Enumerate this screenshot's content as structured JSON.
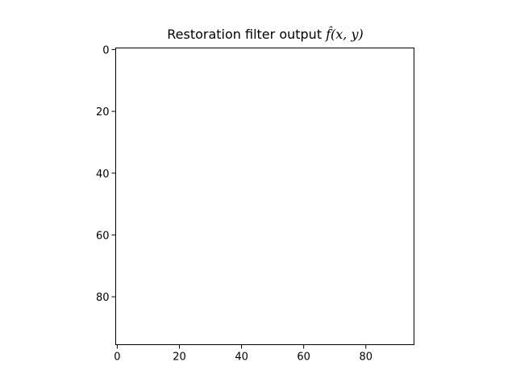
{
  "chart_data": {
    "type": "heatmap",
    "title": "Restoration filter output",
    "title_math": "f̂(x, y)",
    "xlabel": "",
    "ylabel": "",
    "xlim": [
      -0.5,
      95.5
    ],
    "ylim": [
      95.5,
      -0.5
    ],
    "y_inverted": true,
    "grid": false,
    "x_ticks": [
      0,
      20,
      40,
      60,
      80
    ],
    "y_ticks": [
      0,
      20,
      40,
      60,
      80
    ],
    "image_fill": "#ffffff",
    "image_shape": [
      96,
      96
    ]
  }
}
